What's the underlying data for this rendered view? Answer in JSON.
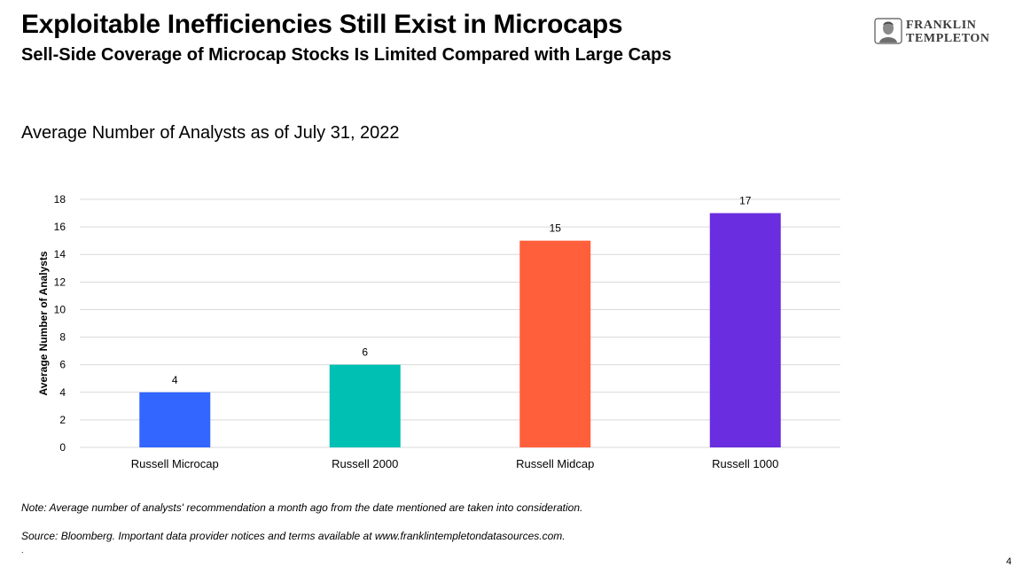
{
  "header": {
    "title": "Exploitable Inefficiencies Still Exist in Microcaps",
    "subtitle": "Sell-Side Coverage of Microcap Stocks Is Limited Compared with Large Caps"
  },
  "logo": {
    "line1": "FRANKLIN",
    "line2": "TEMPLETON",
    "icon": "franklin-portrait-icon"
  },
  "chart_data": {
    "type": "bar",
    "title": "Average Number of Analysts as of July 31, 2022",
    "xlabel": "",
    "ylabel": "Average Number of Analysts",
    "categories": [
      "Russell Microcap",
      "Russell 2000",
      "Russell Midcap",
      "Russell 1000"
    ],
    "values": [
      4,
      6,
      15,
      17
    ],
    "data_labels": [
      "4",
      "6",
      "15",
      "17"
    ],
    "colors": [
      "#3366ff",
      "#00bfb3",
      "#ff5f3b",
      "#6a2ee0"
    ],
    "ylim": [
      0,
      18
    ],
    "yticks": [
      0,
      2,
      4,
      6,
      8,
      10,
      12,
      14,
      16,
      18
    ],
    "grid": true,
    "legend": "none"
  },
  "footer": {
    "note": "Note: Average number of analysts' recommendation a month ago from the date mentioned are taken into consideration.",
    "source": "Source: Bloomberg. Important data provider notices and terms available at www.franklintempletondatasources.com.",
    "page": "4"
  }
}
